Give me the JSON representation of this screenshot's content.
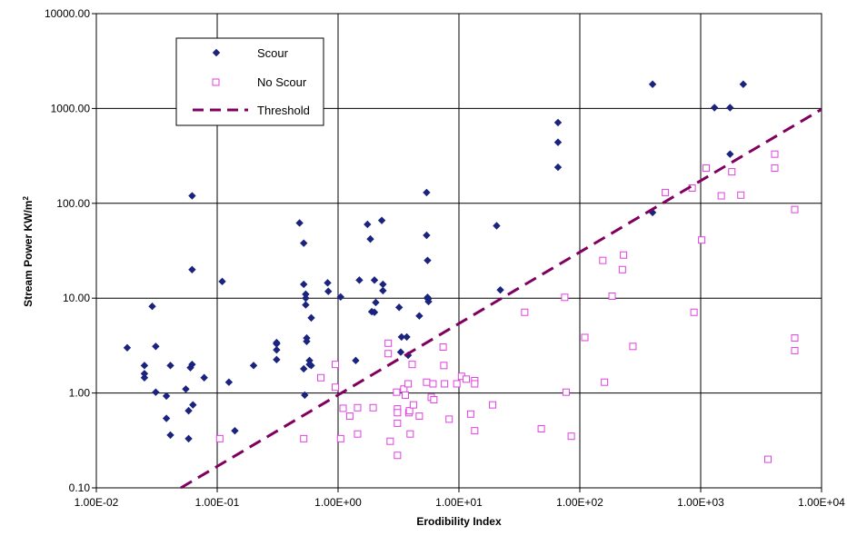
{
  "chart_data": {
    "type": "scatter",
    "title": "",
    "xlabel": "Erodibility Index",
    "ylabel": "Stream Power KW/m",
    "ylabel_sup": "2",
    "x_scale": "log",
    "y_scale": "log",
    "xlim": [
      0.01,
      10000
    ],
    "ylim": [
      0.1,
      10000
    ],
    "x_ticks": [
      "1.00E-02",
      "1.00E-01",
      "1.00E+00",
      "1.00E+01",
      "1.00E+02",
      "1.00E+03",
      "1.00E+04"
    ],
    "y_ticks": [
      "0.10",
      "1.00",
      "10.00",
      "100.00",
      "1000.00",
      "10000.00"
    ],
    "grid": true,
    "legend_position": "top-left",
    "series": [
      {
        "name": "Scour",
        "marker": "diamond",
        "color": "#1a237e",
        "points": [
          [
            0.018,
            3.0
          ],
          [
            0.025,
            1.95
          ],
          [
            0.025,
            1.6
          ],
          [
            0.025,
            1.45
          ],
          [
            0.029,
            8.2
          ],
          [
            0.031,
            3.1
          ],
          [
            0.031,
            1.02
          ],
          [
            0.038,
            0.93
          ],
          [
            0.038,
            0.54
          ],
          [
            0.041,
            1.95
          ],
          [
            0.041,
            0.36
          ],
          [
            0.055,
            1.1
          ],
          [
            0.058,
            0.65
          ],
          [
            0.058,
            0.33
          ],
          [
            0.06,
            1.85
          ],
          [
            0.062,
            2.0
          ],
          [
            0.062,
            120
          ],
          [
            0.062,
            20
          ],
          [
            0.063,
            0.75
          ],
          [
            0.078,
            1.45
          ],
          [
            0.11,
            15
          ],
          [
            0.125,
            1.3
          ],
          [
            0.14,
            0.4
          ],
          [
            0.2,
            1.95
          ],
          [
            0.31,
            3.4
          ],
          [
            0.31,
            3.3
          ],
          [
            0.31,
            2.85
          ],
          [
            0.31,
            2.25
          ],
          [
            0.48,
            62
          ],
          [
            0.52,
            38
          ],
          [
            0.52,
            14
          ],
          [
            0.52,
            1.8
          ],
          [
            0.53,
            0.95
          ],
          [
            0.54,
            11
          ],
          [
            0.54,
            10
          ],
          [
            0.54,
            8.5
          ],
          [
            0.55,
            3.8
          ],
          [
            0.55,
            3.5
          ],
          [
            0.58,
            2.2
          ],
          [
            0.58,
            2.0
          ],
          [
            0.6,
            6.2
          ],
          [
            0.6,
            1.95
          ],
          [
            0.82,
            14.5
          ],
          [
            0.83,
            11.8
          ],
          [
            1.05,
            10.3
          ],
          [
            1.4,
            2.2
          ],
          [
            1.5,
            15.5
          ],
          [
            1.75,
            60
          ],
          [
            1.85,
            42
          ],
          [
            1.9,
            7.2
          ],
          [
            2.0,
            15.5
          ],
          [
            2.0,
            7.1
          ],
          [
            2.05,
            9.0
          ],
          [
            2.3,
            66
          ],
          [
            2.35,
            14
          ],
          [
            2.35,
            12.0
          ],
          [
            3.2,
            8.0
          ],
          [
            3.3,
            2.7
          ],
          [
            3.35,
            3.9
          ],
          [
            3.7,
            3.9
          ],
          [
            3.8,
            2.5
          ],
          [
            4.7,
            6.5
          ],
          [
            5.4,
            130
          ],
          [
            5.4,
            46
          ],
          [
            5.5,
            25
          ],
          [
            5.5,
            10.2
          ],
          [
            5.55,
            9.8
          ],
          [
            5.6,
            9.2
          ],
          [
            20.5,
            58
          ],
          [
            22,
            12.2
          ],
          [
            66,
            710
          ],
          [
            66,
            440
          ],
          [
            66,
            240
          ],
          [
            400,
            1800
          ],
          [
            400,
            80
          ],
          [
            1300,
            1020
          ],
          [
            1750,
            1020
          ],
          [
            1750,
            330
          ],
          [
            2250,
            1800
          ]
        ]
      },
      {
        "name": "No Scour",
        "marker": "square",
        "color": "#e040e0",
        "points": [
          [
            0.105,
            0.33
          ],
          [
            0.52,
            0.33
          ],
          [
            0.72,
            1.45
          ],
          [
            0.95,
            2.0
          ],
          [
            0.95,
            1.15
          ],
          [
            1.05,
            0.33
          ],
          [
            1.1,
            0.69
          ],
          [
            1.25,
            0.57
          ],
          [
            1.45,
            0.37
          ],
          [
            1.45,
            0.7
          ],
          [
            1.95,
            0.7
          ],
          [
            2.6,
            3.35
          ],
          [
            2.6,
            2.6
          ],
          [
            2.7,
            0.31
          ],
          [
            3.05,
            1.02
          ],
          [
            3.1,
            0.68
          ],
          [
            3.1,
            0.62
          ],
          [
            3.1,
            0.48
          ],
          [
            3.1,
            0.22
          ],
          [
            3.5,
            1.1
          ],
          [
            3.6,
            0.95
          ],
          [
            3.8,
            1.25
          ],
          [
            3.85,
            0.62
          ],
          [
            3.9,
            0.65
          ],
          [
            3.95,
            0.37
          ],
          [
            4.1,
            2.0
          ],
          [
            4.2,
            0.75
          ],
          [
            4.7,
            0.57
          ],
          [
            5.4,
            1.3
          ],
          [
            5.9,
            0.9
          ],
          [
            6.1,
            1.25
          ],
          [
            6.2,
            0.85
          ],
          [
            7.4,
            3.05
          ],
          [
            7.5,
            1.95
          ],
          [
            7.6,
            1.25
          ],
          [
            8.3,
            0.53
          ],
          [
            9.6,
            1.25
          ],
          [
            10.5,
            1.5
          ],
          [
            11.5,
            1.4
          ],
          [
            12.5,
            0.6
          ],
          [
            13.5,
            1.35
          ],
          [
            13.5,
            1.25
          ],
          [
            13.5,
            0.4
          ],
          [
            19,
            0.75
          ],
          [
            35,
            7.1
          ],
          [
            48,
            0.42
          ],
          [
            75,
            10.2
          ],
          [
            77,
            1.02
          ],
          [
            85,
            0.35
          ],
          [
            110,
            3.85
          ],
          [
            155,
            25
          ],
          [
            160,
            1.3
          ],
          [
            185,
            10.5
          ],
          [
            225,
            20
          ],
          [
            230,
            28.5
          ],
          [
            275,
            3.1
          ],
          [
            510,
            130
          ],
          [
            850,
            145
          ],
          [
            880,
            7.1
          ],
          [
            1020,
            41
          ],
          [
            1110,
            235
          ],
          [
            1480,
            120
          ],
          [
            1810,
            215
          ],
          [
            2150,
            122
          ],
          [
            3600,
            0.2
          ],
          [
            4100,
            330
          ],
          [
            4100,
            235
          ],
          [
            6000,
            86
          ],
          [
            6000,
            3.8
          ],
          [
            6000,
            2.8
          ]
        ]
      },
      {
        "name": "Threshold",
        "type": "line",
        "dashed": true,
        "color": "#800060",
        "points": [
          [
            0.05,
            0.1
          ],
          [
            10000,
            980
          ]
        ]
      }
    ]
  }
}
